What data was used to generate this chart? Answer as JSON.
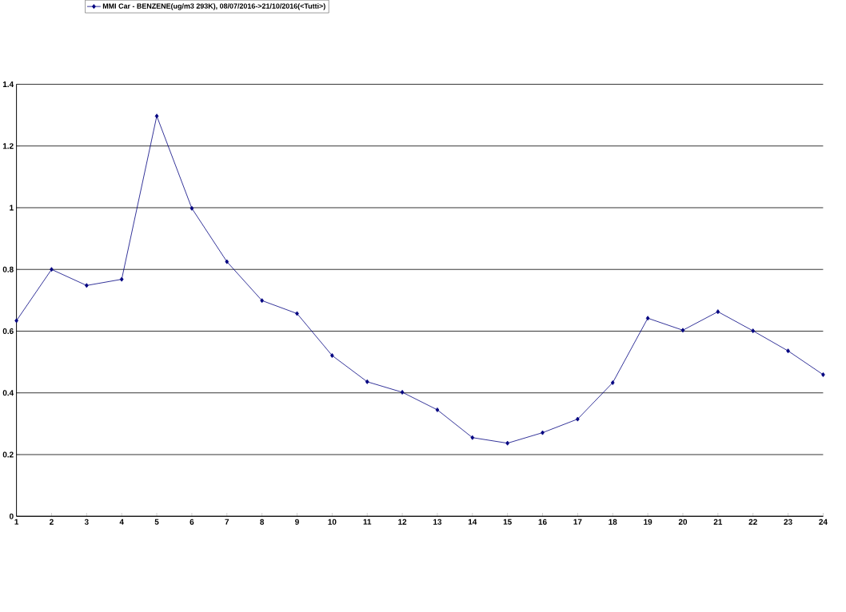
{
  "chart_data": {
    "type": "line",
    "categories": [
      "1",
      "2",
      "3",
      "4",
      "5",
      "6",
      "7",
      "8",
      "9",
      "10",
      "11",
      "12",
      "13",
      "14",
      "15",
      "16",
      "17",
      "18",
      "19",
      "20",
      "21",
      "22",
      "23",
      "24"
    ],
    "series": [
      {
        "name": "MMI Car - BENZENE(ug/m3 293K), 08/07/2016->21/10/2016(<Tutti>)",
        "color": "#000080",
        "values": [
          0.634,
          0.8,
          0.748,
          0.768,
          1.297,
          0.998,
          0.825,
          0.699,
          0.657,
          0.521,
          0.436,
          0.402,
          0.345,
          0.255,
          0.237,
          0.271,
          0.315,
          0.433,
          0.642,
          0.603,
          0.663,
          0.601,
          0.536,
          0.459
        ]
      }
    ],
    "ylim": [
      0,
      1.4
    ],
    "yticks": [
      0,
      0.2,
      0.4,
      0.6,
      0.8,
      1,
      1.2,
      1.4
    ],
    "grid": "y",
    "legend": "top left",
    "marker": "diamond",
    "line_style": "solid"
  }
}
